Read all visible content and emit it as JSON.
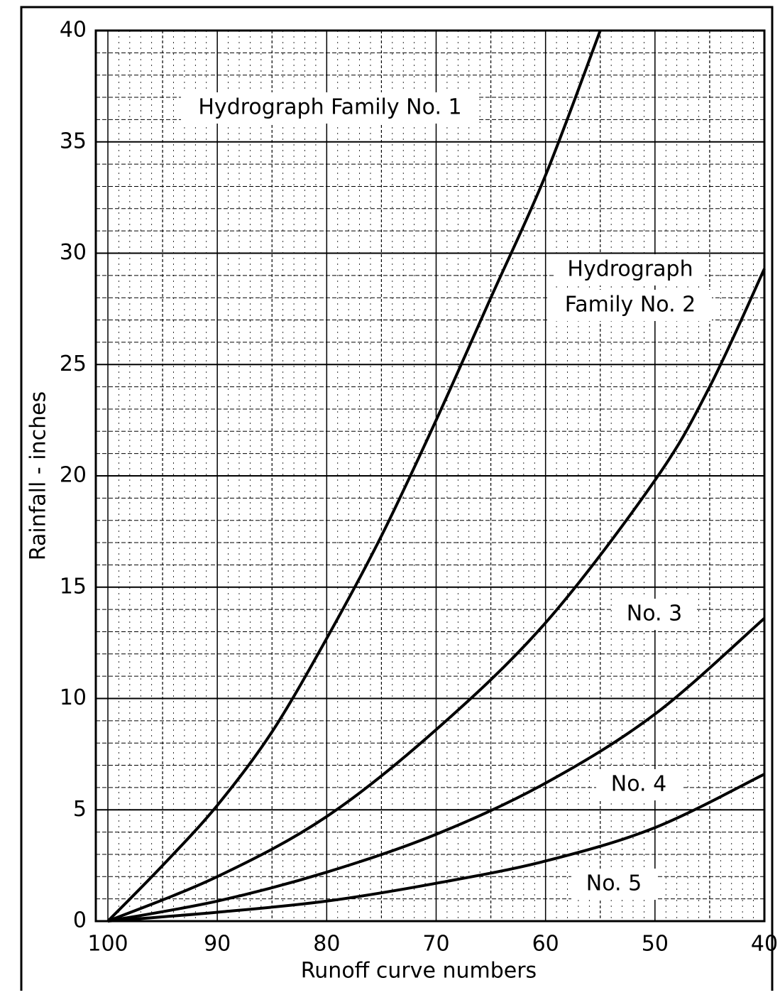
{
  "chart_data": {
    "type": "line",
    "xlabel": "Runoff curve numbers",
    "ylabel": "Rainfall - inches",
    "xlim": [
      100,
      40
    ],
    "xticks": [
      100,
      90,
      80,
      70,
      60,
      50,
      40
    ],
    "ylim": [
      0,
      40
    ],
    "yticks": [
      0,
      5,
      10,
      15,
      20,
      25,
      30,
      35,
      40
    ],
    "grid": true,
    "color": "#000000",
    "series": [
      {
        "x": [
          100,
          95,
          90,
          85,
          80,
          75,
          70,
          65,
          60,
          55
        ],
        "values": [
          0,
          2.5,
          5.2,
          8.5,
          12.7,
          17.3,
          22.5,
          28,
          33.5,
          40
        ]
      },
      {
        "x": [
          100,
          90,
          80,
          70,
          60,
          50,
          45,
          40
        ],
        "values": [
          0,
          2.0,
          4.7,
          8.6,
          13.4,
          19.8,
          24,
          29.3
        ]
      },
      {
        "x": [
          100,
          90,
          80,
          70,
          60,
          50,
          40
        ],
        "values": [
          0,
          0.9,
          2.2,
          3.9,
          6.2,
          9.3,
          13.6
        ]
      },
      {
        "x": [
          100,
          90,
          80,
          70,
          60,
          50,
          40
        ],
        "values": [
          0,
          0.4,
          0.9,
          1.7,
          2.7,
          4.2,
          6.6
        ]
      }
    ],
    "annotations": [
      "Hydrograph Family No. 1",
      "Hydrograph",
      "Family No. 2",
      "No. 3",
      "No. 4",
      "No. 5"
    ]
  }
}
